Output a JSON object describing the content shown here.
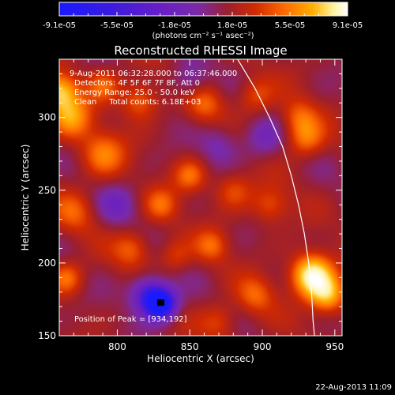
{
  "colorbar": {
    "tick_labels": [
      "-9.1e-05",
      "-5.5e-05",
      "-1.8e-05",
      "1.8e-05",
      "5.5e-05",
      "9.1e-05"
    ],
    "unit_label": "(photons cm⁻² s⁻¹ asec⁻²)",
    "range": [
      -9.1e-05,
      9.1e-05
    ],
    "colors": [
      "#1a1aff",
      "#3b1be0",
      "#6a1fc4",
      "#7a2aa8",
      "#9a1f30",
      "#d02a00",
      "#ff6a00",
      "#ffb000",
      "#fff2a0",
      "#ffffff"
    ]
  },
  "title": "Reconstructed RHESSI Image",
  "info": {
    "time_range": "9-Aug-2011 06:32:28.000 to 06:37:46.000",
    "detectors": "Detectors: 4F 5F 6F 7F 8F, Att 0",
    "energy": "Energy Range: 25.0 - 50.0 keV",
    "clean": "Clean     Total counts: 6.18E+03",
    "peak": "Position of Peak = [934,192]"
  },
  "axes": {
    "xlabel": "Heliocentric X (arcsec)",
    "ylabel": "Heliocentric Y (arcsec)",
    "xlim": [
      760,
      955
    ],
    "ylim": [
      150,
      340
    ],
    "xticks": [
      800,
      850,
      900,
      950
    ],
    "yticks": [
      150,
      200,
      250,
      300
    ]
  },
  "timestamp": "22-Aug-2013 11:09",
  "chart_data": {
    "type": "heatmap",
    "title": "Reconstructed RHESSI Image",
    "xlabel": "Heliocentric X (arcsec)",
    "ylabel": "Heliocentric Y (arcsec)",
    "xlim": [
      760,
      955
    ],
    "ylim": [
      150,
      340
    ],
    "peak": [
      934,
      192
    ],
    "sources": [
      {
        "x": 934,
        "y": 192,
        "amp": 9e-05,
        "sigma": 10
      },
      {
        "x": 945,
        "y": 178,
        "amp": 6e-05,
        "sigma": 9
      },
      {
        "x": 760,
        "y": 318,
        "amp": 6.5e-05,
        "sigma": 9
      },
      {
        "x": 768,
        "y": 300,
        "amp": 5e-05,
        "sigma": 10
      },
      {
        "x": 790,
        "y": 322,
        "amp": 3.5e-05,
        "sigma": 8
      },
      {
        "x": 815,
        "y": 312,
        "amp": 4e-05,
        "sigma": 9
      },
      {
        "x": 860,
        "y": 310,
        "amp": 3.5e-05,
        "sigma": 9
      },
      {
        "x": 895,
        "y": 315,
        "amp": 3.2e-05,
        "sigma": 9
      },
      {
        "x": 925,
        "y": 300,
        "amp": 3.5e-05,
        "sigma": 9
      },
      {
        "x": 930,
        "y": 285,
        "amp": 4e-05,
        "sigma": 9
      },
      {
        "x": 790,
        "y": 275,
        "amp": 4.2e-05,
        "sigma": 11
      },
      {
        "x": 850,
        "y": 260,
        "amp": 4e-05,
        "sigma": 8
      },
      {
        "x": 880,
        "y": 250,
        "amp": 3e-05,
        "sigma": 9
      },
      {
        "x": 905,
        "y": 240,
        "amp": 3.2e-05,
        "sigma": 9
      },
      {
        "x": 830,
        "y": 240,
        "amp": 3.5e-05,
        "sigma": 8
      },
      {
        "x": 770,
        "y": 235,
        "amp": 3e-05,
        "sigma": 10
      },
      {
        "x": 810,
        "y": 210,
        "amp": 3.5e-05,
        "sigma": 9
      },
      {
        "x": 865,
        "y": 212,
        "amp": 3.5e-05,
        "sigma": 8
      },
      {
        "x": 765,
        "y": 190,
        "amp": 4e-05,
        "sigma": 8
      },
      {
        "x": 895,
        "y": 178,
        "amp": 3.5e-05,
        "sigma": 9
      },
      {
        "x": 870,
        "y": 160,
        "amp": 3e-05,
        "sigma": 9
      },
      {
        "x": 840,
        "y": 205,
        "amp": 2.5e-05,
        "sigma": 8
      },
      {
        "x": 830,
        "y": 172,
        "amp": -9e-05,
        "sigma": 8
      },
      {
        "x": 820,
        "y": 180,
        "amp": -5e-05,
        "sigma": 9
      },
      {
        "x": 800,
        "y": 240,
        "amp": -2.5e-05,
        "sigma": 10
      },
      {
        "x": 870,
        "y": 282,
        "amp": -2.5e-05,
        "sigma": 10
      },
      {
        "x": 850,
        "y": 325,
        "amp": -3e-05,
        "sigma": 9
      },
      {
        "x": 900,
        "y": 285,
        "amp": -2.5e-05,
        "sigma": 10
      }
    ],
    "limb_curve": [
      [
        883,
        340
      ],
      [
        895,
        320
      ],
      [
        905,
        300
      ],
      [
        914,
        280
      ],
      [
        920,
        260
      ],
      [
        925,
        240
      ],
      [
        929,
        220
      ],
      [
        932,
        200
      ],
      [
        934,
        180
      ],
      [
        935,
        160
      ],
      [
        936,
        150
      ]
    ]
  }
}
